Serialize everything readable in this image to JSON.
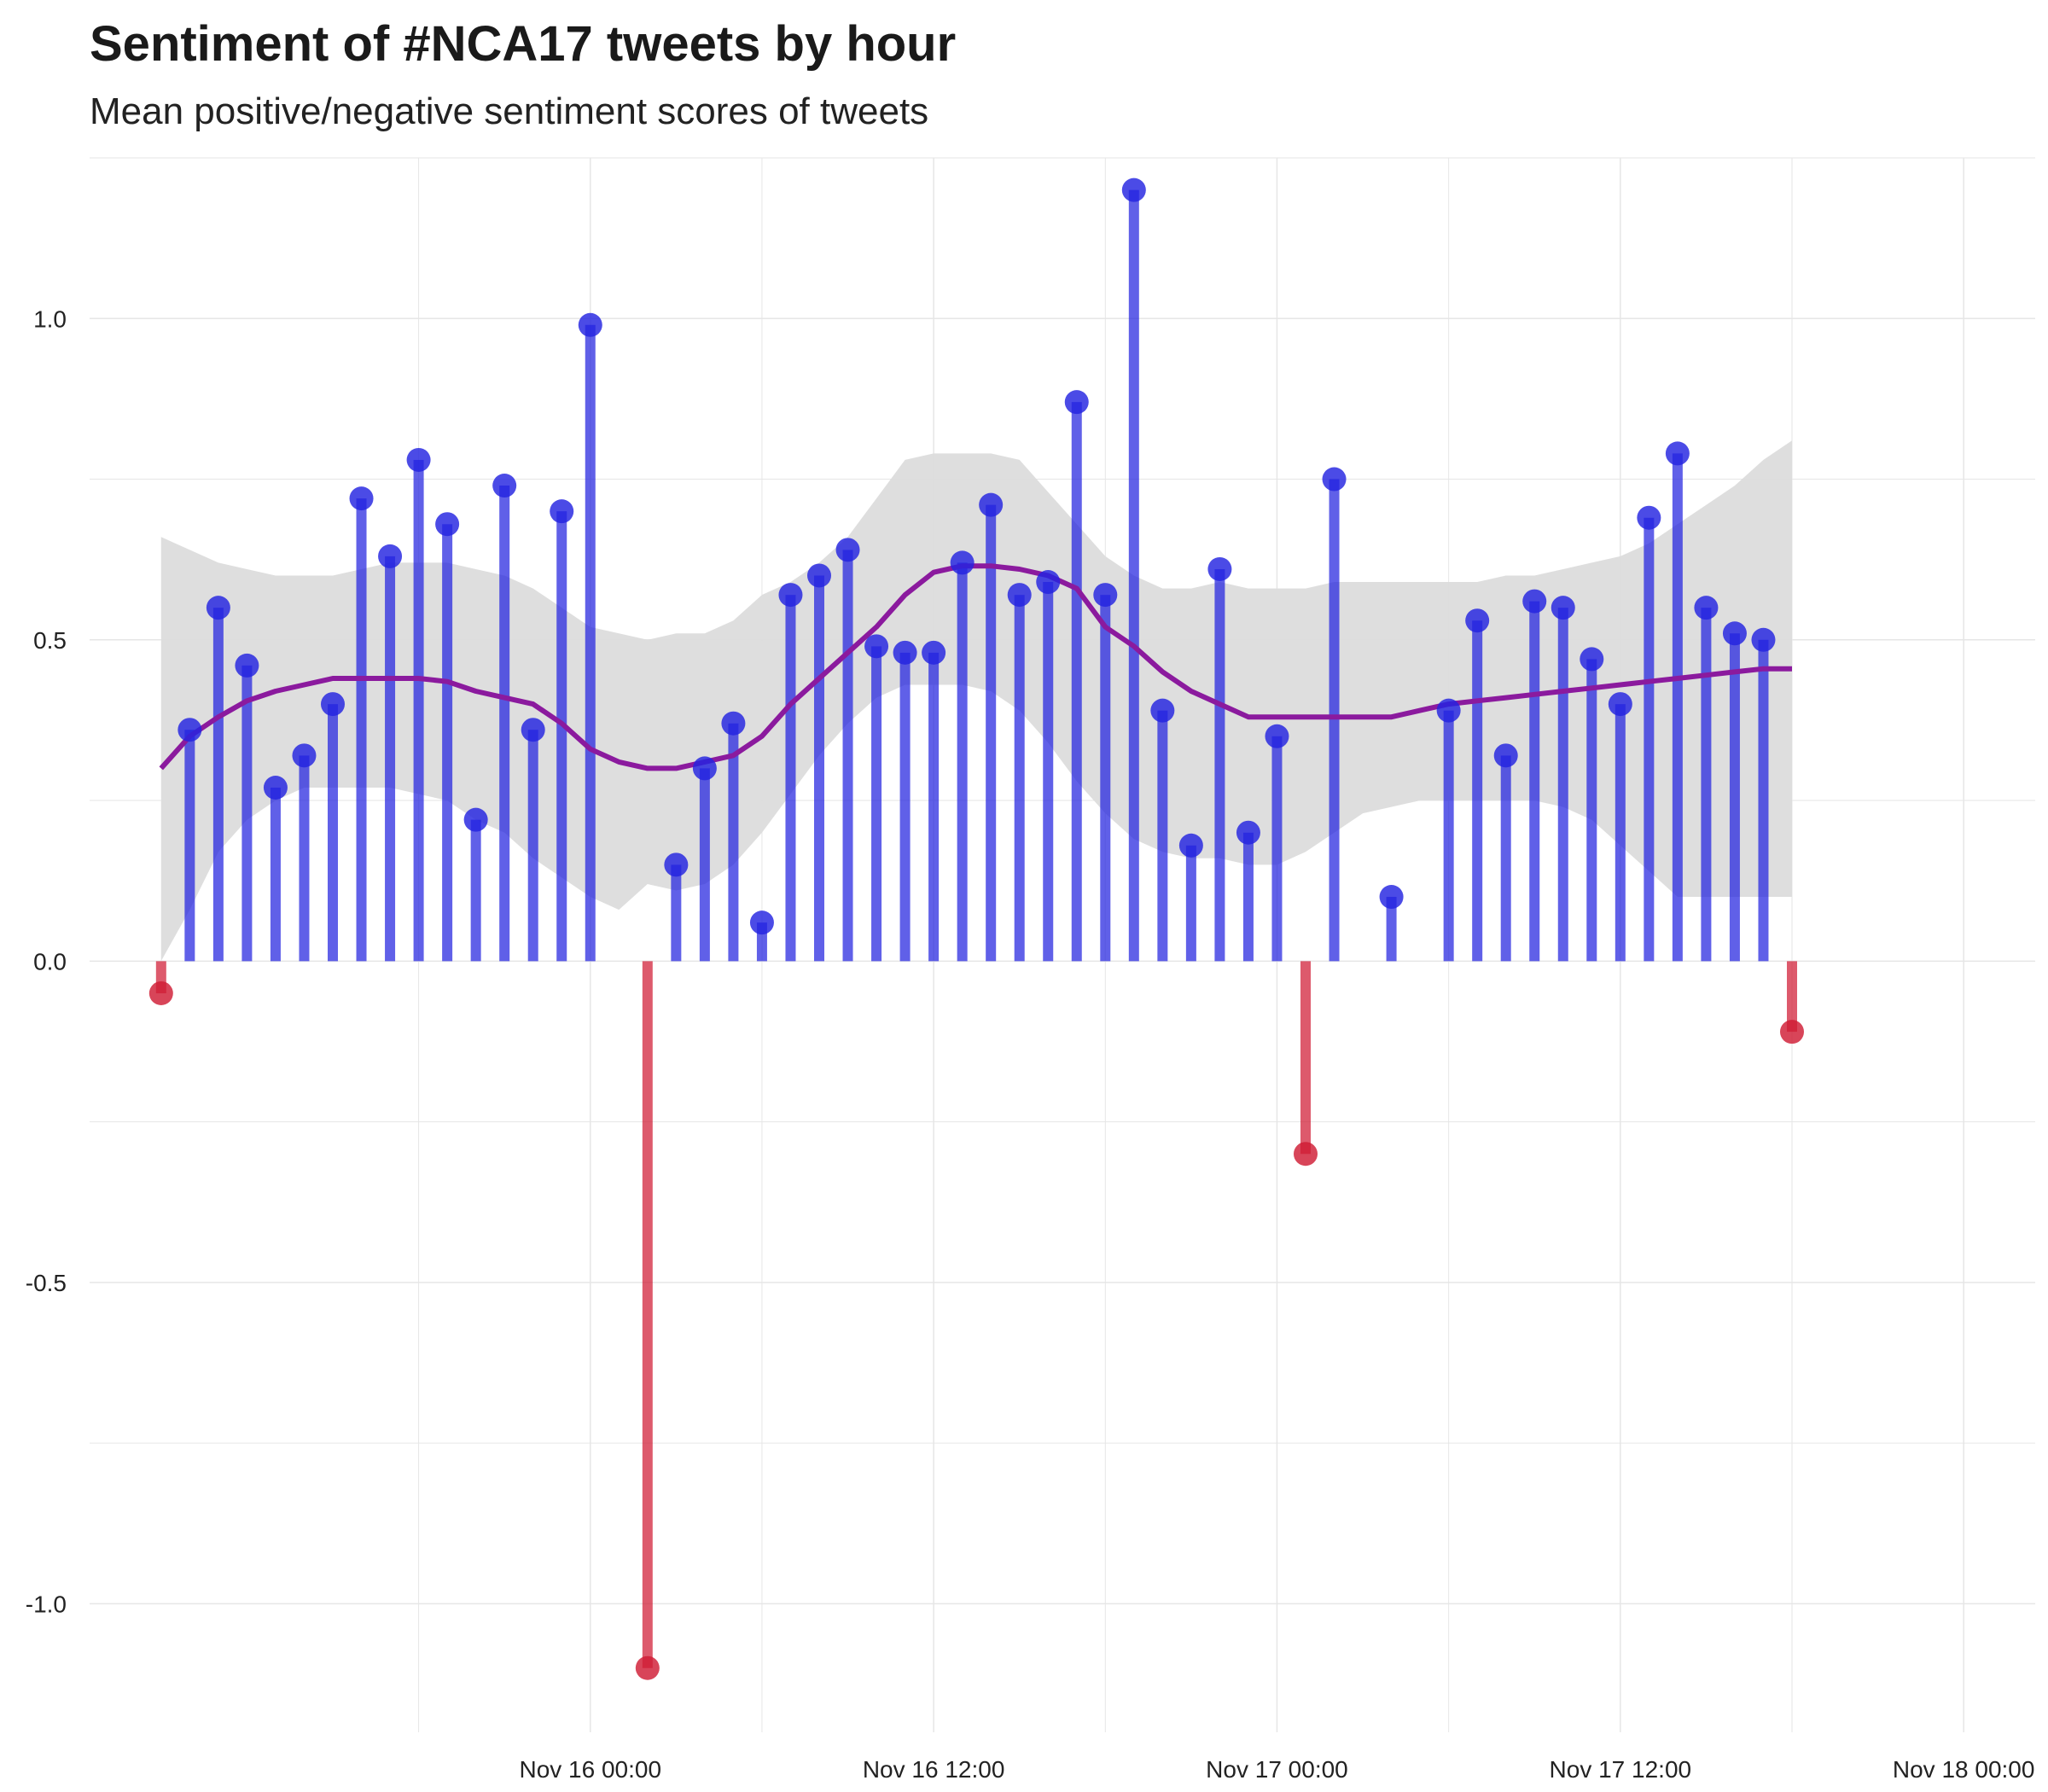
{
  "chart_data": {
    "type": "bar",
    "title": "Sentiment of #NCA17 tweets by hour",
    "subtitle": "Mean positive/negative sentiment scores of tweets",
    "xlabel": "",
    "ylabel": "",
    "x_start": "2017-11-15 09:00",
    "x_step_hours": 1,
    "xlim": [
      "2017-11-15 06:30",
      "2017-11-18 02:30"
    ],
    "ylim": [
      -1.2,
      1.25
    ],
    "x_ticks": [
      {
        "at": "2017-11-16 00:00",
        "label": "Nov 16 00:00"
      },
      {
        "at": "2017-11-16 12:00",
        "label": "Nov 16 12:00"
      },
      {
        "at": "2017-11-17 00:00",
        "label": "Nov 17 00:00"
      },
      {
        "at": "2017-11-17 12:00",
        "label": "Nov 17 12:00"
      },
      {
        "at": "2017-11-18 00:00",
        "label": "Nov 18 00:00"
      }
    ],
    "y_ticks": [
      {
        "value": 1.0,
        "label": "1.0"
      },
      {
        "value": 0.5,
        "label": "0.5"
      },
      {
        "value": 0.0,
        "label": "0.0"
      },
      {
        "value": -0.5,
        "label": "-0.5"
      },
      {
        "value": -1.0,
        "label": "-1.0"
      }
    ],
    "series": [
      {
        "kind": "lollipop",
        "values": [
          -0.05,
          0.36,
          0.55,
          0.46,
          0.27,
          0.32,
          0.4,
          0.72,
          0.63,
          0.78,
          0.68,
          0.22,
          0.74,
          0.36,
          0.7,
          0.99,
          null,
          -1.1,
          0.15,
          0.3,
          0.37,
          0.06,
          0.57,
          0.6,
          0.64,
          0.49,
          0.48,
          0.48,
          0.62,
          0.71,
          0.57,
          0.59,
          0.87,
          0.57,
          1.2,
          0.39,
          0.18,
          0.61,
          0.2,
          0.35,
          -0.3,
          0.75,
          null,
          0.1,
          null,
          0.39,
          0.53,
          0.32,
          0.56,
          0.55,
          0.47,
          0.4,
          0.69,
          0.79,
          0.55,
          0.51,
          0.5,
          -0.11
        ]
      },
      {
        "kind": "smooth",
        "values": [
          0.3,
          0.35,
          0.38,
          0.405,
          0.42,
          0.43,
          0.44,
          0.44,
          0.44,
          0.44,
          0.435,
          0.42,
          0.41,
          0.4,
          0.37,
          0.33,
          0.31,
          0.3,
          0.3,
          0.31,
          0.32,
          0.35,
          0.4,
          0.44,
          0.48,
          0.52,
          0.57,
          0.605,
          0.615,
          0.615,
          0.61,
          0.6,
          0.58,
          0.52,
          0.49,
          0.45,
          0.42,
          0.4,
          0.38,
          0.38,
          0.38,
          0.38,
          0.38,
          0.38,
          0.39,
          0.4,
          0.405,
          0.41,
          0.415,
          0.42,
          0.425,
          0.43,
          0.435,
          0.44,
          0.445,
          0.45,
          0.455,
          0.455
        ]
      },
      {
        "kind": "confidence_band",
        "lower": [
          0.0,
          0.08,
          0.17,
          0.22,
          0.25,
          0.27,
          0.27,
          0.27,
          0.27,
          0.26,
          0.25,
          0.22,
          0.2,
          0.16,
          0.13,
          0.1,
          0.08,
          0.12,
          0.11,
          0.12,
          0.15,
          0.2,
          0.26,
          0.32,
          0.37,
          0.41,
          0.43,
          0.43,
          0.43,
          0.42,
          0.39,
          0.34,
          0.28,
          0.23,
          0.19,
          0.17,
          0.16,
          0.16,
          0.15,
          0.15,
          0.17,
          0.2,
          0.23,
          0.24,
          0.25,
          0.25,
          0.25,
          0.25,
          0.25,
          0.24,
          0.22,
          0.18,
          0.14,
          0.1,
          0.1,
          0.1,
          0.1,
          0.1
        ],
        "upper": [
          0.66,
          0.64,
          0.62,
          0.61,
          0.6,
          0.6,
          0.6,
          0.61,
          0.62,
          0.62,
          0.62,
          0.61,
          0.6,
          0.58,
          0.55,
          0.52,
          0.51,
          0.5,
          0.51,
          0.51,
          0.53,
          0.57,
          0.59,
          0.62,
          0.66,
          0.72,
          0.78,
          0.79,
          0.79,
          0.79,
          0.78,
          0.73,
          0.68,
          0.63,
          0.6,
          0.58,
          0.58,
          0.59,
          0.58,
          0.58,
          0.58,
          0.59,
          0.59,
          0.59,
          0.59,
          0.59,
          0.59,
          0.6,
          0.6,
          0.61,
          0.62,
          0.63,
          0.65,
          0.68,
          0.71,
          0.74,
          0.78,
          0.81
        ]
      }
    ],
    "grid": true,
    "legend": "none",
    "colors": {
      "positive": "#2323e0",
      "negative": "#d01c34",
      "smooth": "#8b1a9e",
      "band": "#dcdcdc",
      "grid": "#e6e6e6"
    }
  }
}
